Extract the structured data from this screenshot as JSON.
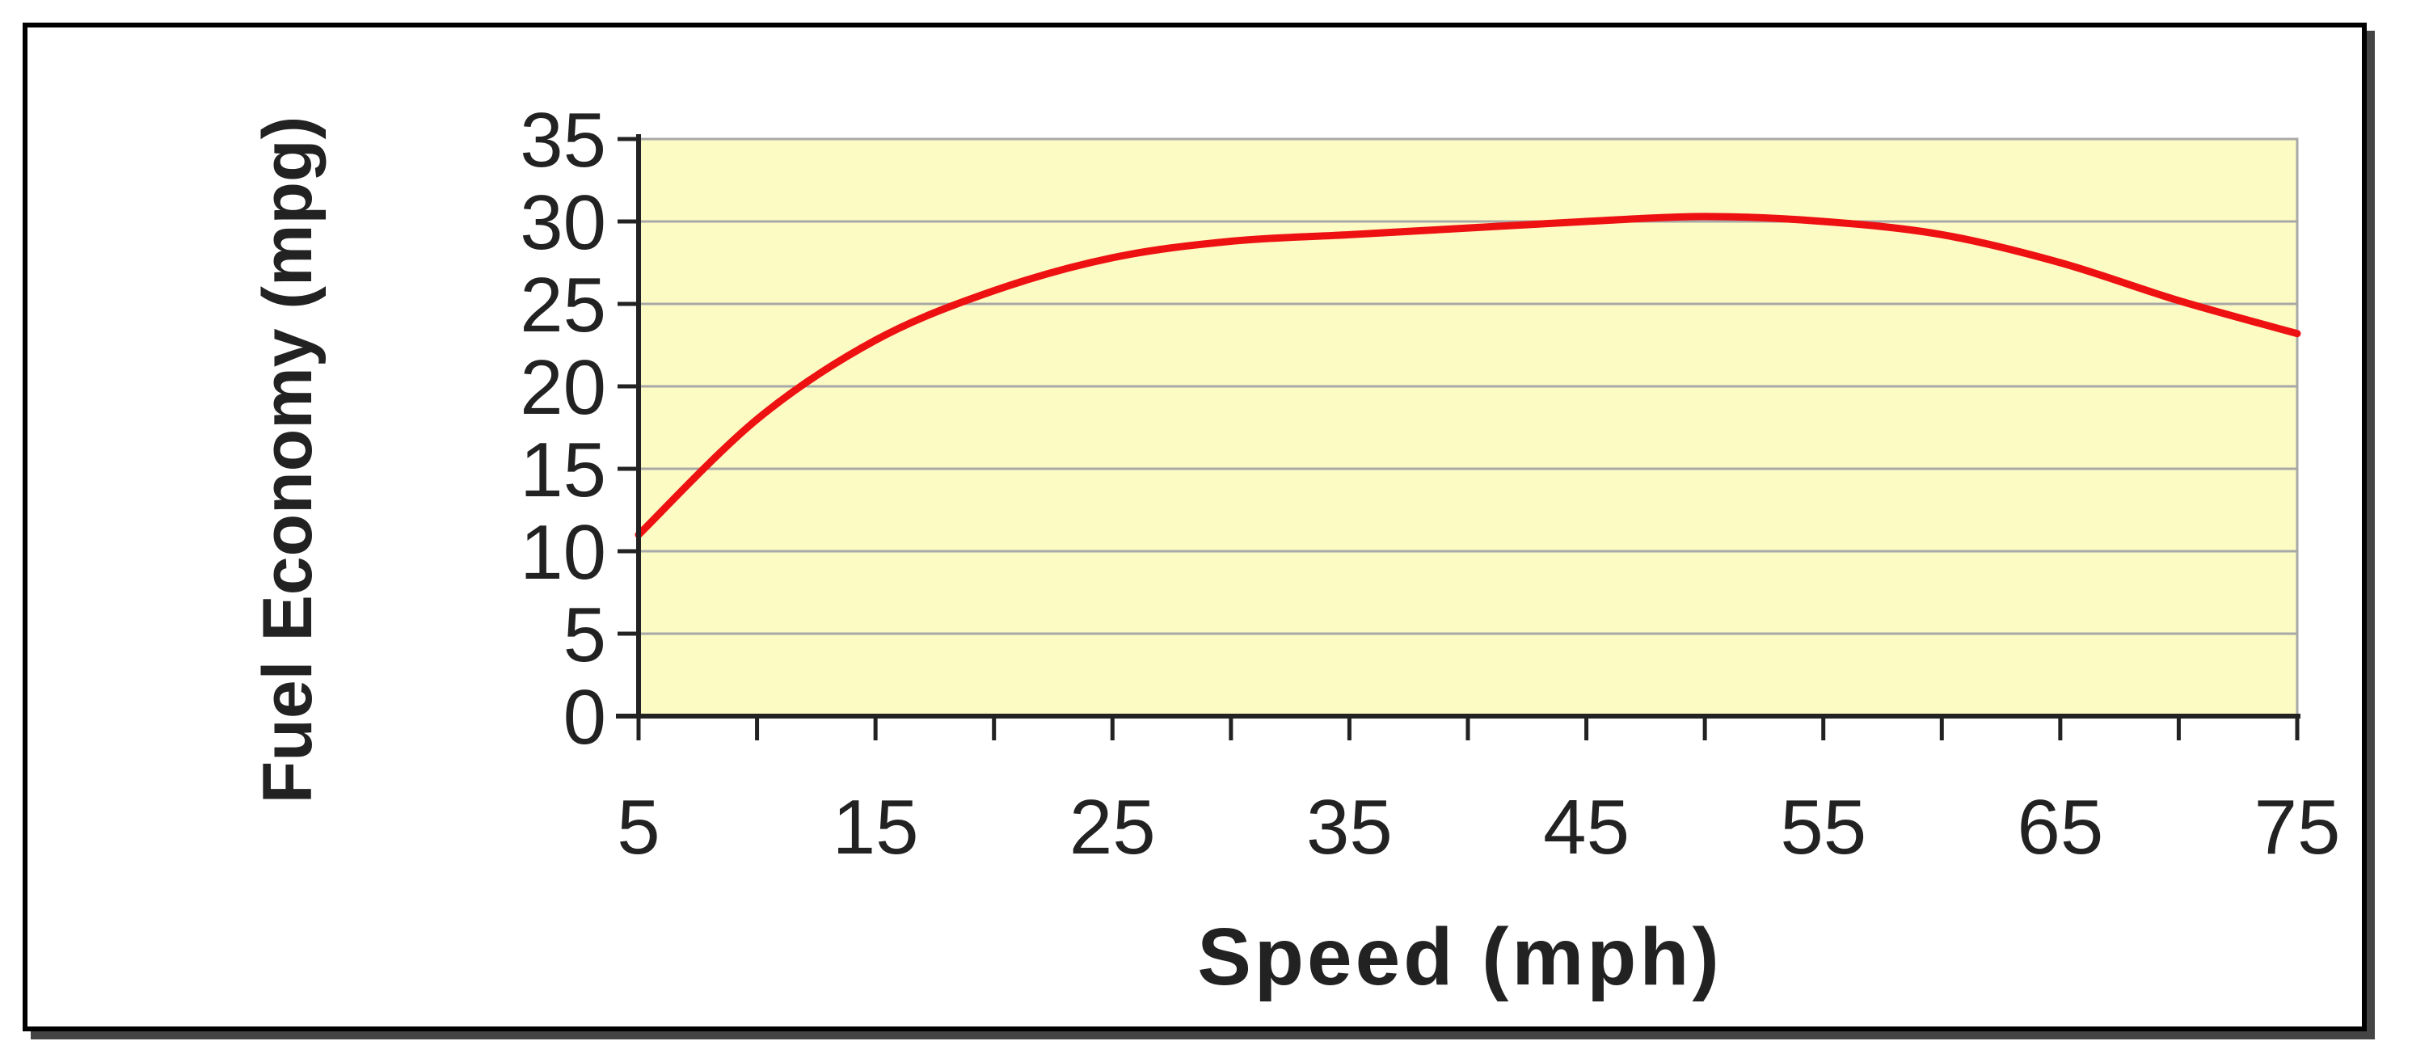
{
  "colors": {
    "plot_background": "#fdfbc4",
    "gridline": "#a8a8a8",
    "axis": "#222222",
    "series_line": "#ee1111",
    "frame": "#000000"
  },
  "chart_data": {
    "type": "line",
    "title": "",
    "xlabel": "Speed (mph)",
    "ylabel": "Fuel Economy (mpg)",
    "xlim": [
      5,
      75
    ],
    "ylim": [
      0,
      35
    ],
    "x_ticks_major": [
      5,
      15,
      25,
      35,
      45,
      55,
      65,
      75
    ],
    "x_ticks_minor_step": 5,
    "y_ticks": [
      0,
      5,
      10,
      15,
      20,
      25,
      30,
      35
    ],
    "grid": "horizontal",
    "legend": "none",
    "series": [
      {
        "x": [
          5,
          10,
          15,
          20,
          25,
          30,
          35,
          40,
          45,
          50,
          55,
          60,
          65,
          70,
          75
        ],
        "y": [
          11.0,
          18.0,
          22.8,
          25.8,
          27.8,
          28.8,
          29.2,
          29.6,
          30.0,
          30.3,
          30.0,
          29.2,
          27.5,
          25.2,
          23.2
        ]
      }
    ]
  }
}
